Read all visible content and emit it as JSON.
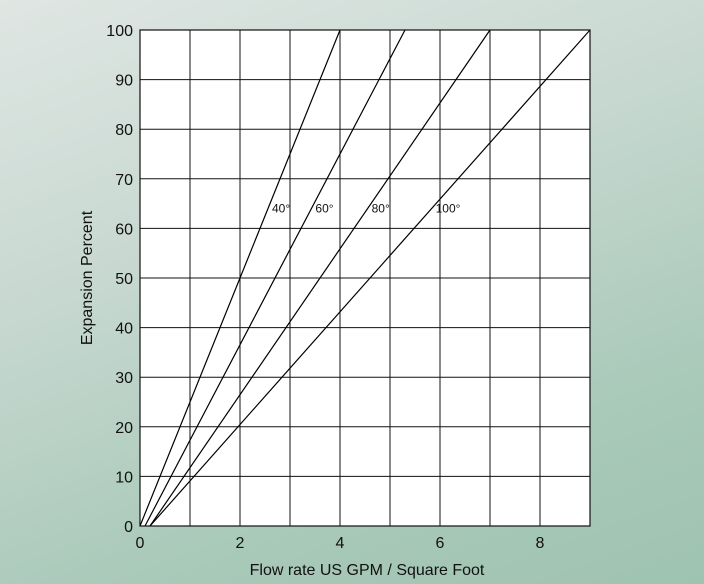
{
  "chart_data": {
    "type": "line",
    "xlabel": "Flow rate US GPM / Square Foot",
    "ylabel": "Expansion Percent",
    "xlim": [
      0,
      9
    ],
    "ylim": [
      0,
      100
    ],
    "x_ticks": [
      "0",
      "2",
      "4",
      "6",
      "8"
    ],
    "y_ticks": [
      "0",
      "10",
      "20",
      "30",
      "40",
      "50",
      "60",
      "70",
      "80",
      "90",
      "100"
    ],
    "grid": true,
    "series": [
      {
        "name": "40°",
        "x": [
          0.0,
          4.0
        ],
        "y": [
          0,
          100
        ]
      },
      {
        "name": "60°",
        "x": [
          0.1,
          5.3
        ],
        "y": [
          0,
          100
        ]
      },
      {
        "name": "80°",
        "x": [
          0.2,
          7.0
        ],
        "y": [
          0,
          100
        ]
      },
      {
        "name": "100°",
        "x": [
          0.2,
          9.0
        ],
        "y": [
          0,
          100
        ]
      }
    ],
    "line_color": "#000000"
  }
}
